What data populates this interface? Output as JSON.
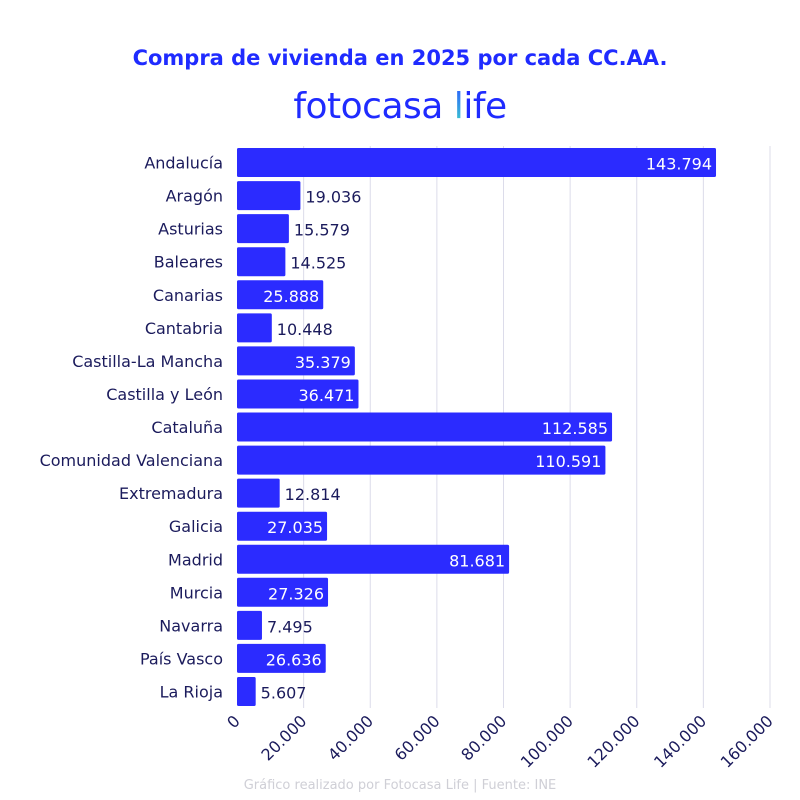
{
  "chart_data": {
    "type": "bar",
    "orientation": "horizontal",
    "title": "Compra de vivienda en 2025 por cada CC.AA.",
    "logo": {
      "text": "fotocasa life",
      "main": "fotocasa ",
      "accent_letter": "l",
      "rest": "ife"
    },
    "categories": [
      "Andalucía",
      "Aragón",
      "Asturias",
      "Baleares",
      "Canarias",
      "Cantabria",
      "Castilla-La Mancha",
      "Castilla y León",
      "Cataluña",
      "Comunidad Valenciana",
      "Extremadura",
      "Galicia",
      "Madrid",
      "Murcia",
      "Navarra",
      "País Vasco",
      "La Rioja"
    ],
    "values": [
      143794,
      19036,
      15579,
      14525,
      25888,
      10448,
      35379,
      36471,
      112585,
      110591,
      12814,
      27035,
      81681,
      27326,
      7495,
      26636,
      5607
    ],
    "value_labels": [
      "143.794",
      "19.036",
      "15.579",
      "14.525",
      "25.888",
      "10.448",
      "35.379",
      "36.471",
      "112.585",
      "110.591",
      "12.814",
      "27.035",
      "81.681",
      "27.326",
      "7.495",
      "26.636",
      "5.607"
    ],
    "xlim": [
      0,
      160000
    ],
    "xticks": [
      0,
      20000,
      40000,
      60000,
      80000,
      100000,
      120000,
      140000,
      160000
    ],
    "xtick_labels": [
      "0",
      "20.000",
      "40.000",
      "60.000",
      "80.000",
      "100.000",
      "120.000",
      "140.000",
      "160.000"
    ],
    "xlabel": "",
    "ylabel": "",
    "grid": "vertical",
    "legend": "none",
    "colors": {
      "bar": "#2b2bff",
      "title": "#1f2bff",
      "text": "#1b1b5c",
      "grid": "#dcdcea",
      "footer": "#cfcfd6"
    },
    "footer": "Gráfico realizado por Fotocasa Life | Fuente: INE"
  }
}
